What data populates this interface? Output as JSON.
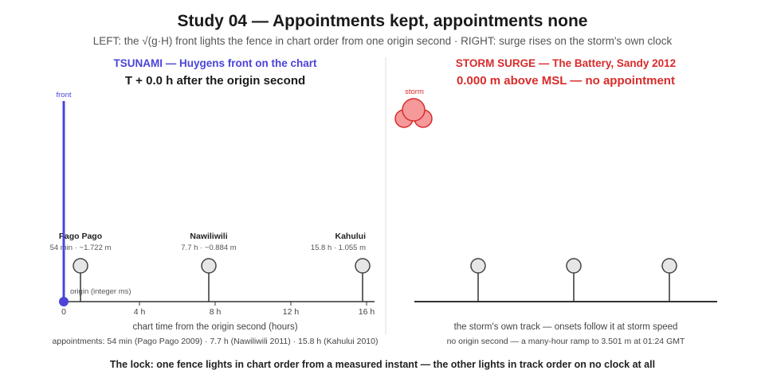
{
  "title": "Study 04 — Appointments kept, appointments none",
  "subtitle": "LEFT: the √(g·H) front lights the fence in chart order from one origin second · RIGHT: surge rises on the storm's own clock",
  "left": {
    "panel_title": "TSUNAMI — Huygens front on the chart",
    "readout": "T + 0.0 h after the origin second",
    "front_label": "front",
    "front_hours": 0.0,
    "origin_label": "origin (integer ms)",
    "axis_ticks": [
      "0",
      "4 h",
      "8 h",
      "12 h",
      "16 h"
    ],
    "axis_caption": "chart time from the origin second (hours)",
    "appointments": "appointments: 54 min (Pago Pago 2009) · 7.7 h (Nawiliwili 2011) · 15.8 h (Kahului 2010)",
    "stations": [
      {
        "name": "Pago Pago",
        "detail": "54 min · −1.722 m",
        "hours": 0.9
      },
      {
        "name": "Nawiliwili",
        "detail": "7.7 h · −0.884 m",
        "hours": 7.7
      },
      {
        "name": "Kahului",
        "detail": "15.8 h · 1.055 m",
        "hours": 15.8
      }
    ],
    "colors": {
      "front": "#4a44d8",
      "lamp_off": "#e6e6e6"
    }
  },
  "right": {
    "panel_title": "STORM SURGE — The Battery, Sandy 2012",
    "readout": "0.000 m above MSL — no appointment",
    "storm_label": "storm",
    "track_caption": "the storm's own track — onsets follow it at storm speed",
    "note": "no origin second — a many-hour ramp to 3.501 m at 01:24 GMT",
    "lamps": 3,
    "colors": {
      "storm": "#d92b2b",
      "storm_fill": "#f5999a"
    }
  },
  "footer": "The lock: one fence lights in chart order from a measured instant — the other lights in track order on no clock at all"
}
